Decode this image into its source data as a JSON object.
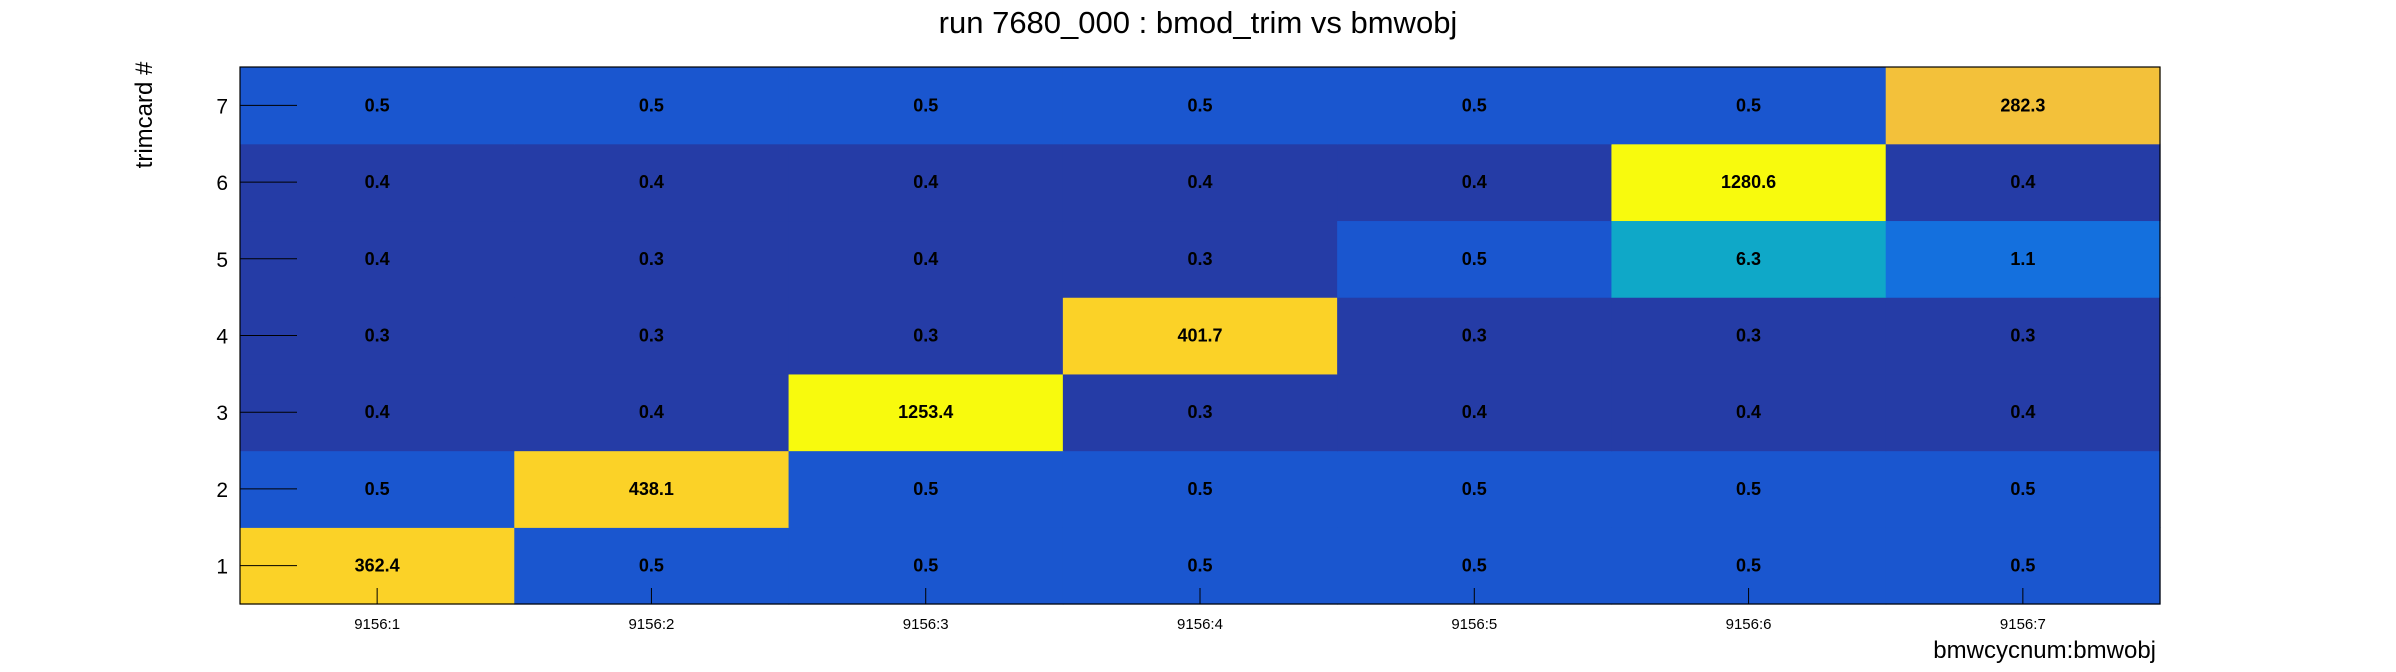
{
  "chart_data": {
    "type": "heatmap",
    "title": "run 7680_000 : bmod_trim vs bmwobj",
    "xlabel": "bmwcycnum:bmwobj",
    "ylabel": "trimcard #",
    "x_categories": [
      "9156:1",
      "9156:2",
      "9156:3",
      "9156:4",
      "9156:5",
      "9156:6",
      "9156:7"
    ],
    "y_categories": [
      "1",
      "2",
      "3",
      "4",
      "5",
      "6",
      "7"
    ],
    "values": [
      [
        362.4,
        0.5,
        0.5,
        0.5,
        0.5,
        0.5,
        0.5
      ],
      [
        0.5,
        438.1,
        0.5,
        0.5,
        0.5,
        0.5,
        0.5
      ],
      [
        0.4,
        0.4,
        1253.4,
        0.3,
        0.4,
        0.4,
        0.4
      ],
      [
        0.3,
        0.3,
        0.3,
        401.7,
        0.3,
        0.3,
        0.3
      ],
      [
        0.4,
        0.3,
        0.4,
        0.3,
        0.5,
        6.3,
        1.1
      ],
      [
        0.4,
        0.4,
        0.4,
        0.4,
        0.4,
        1280.6,
        0.4
      ],
      [
        0.5,
        0.5,
        0.5,
        0.5,
        0.5,
        0.5,
        282.3
      ]
    ],
    "colors": {
      "v_0_3": "#253ca6",
      "v_0_4": "#253ca6",
      "v_0_5": "#1a56cf",
      "v_1_1": "#1470de",
      "v_6_3": "#0fa8c8",
      "v_282": "#f3c13a",
      "v_360_440": "#fbd227",
      "v_1250plus": "#f8fa0d"
    }
  }
}
